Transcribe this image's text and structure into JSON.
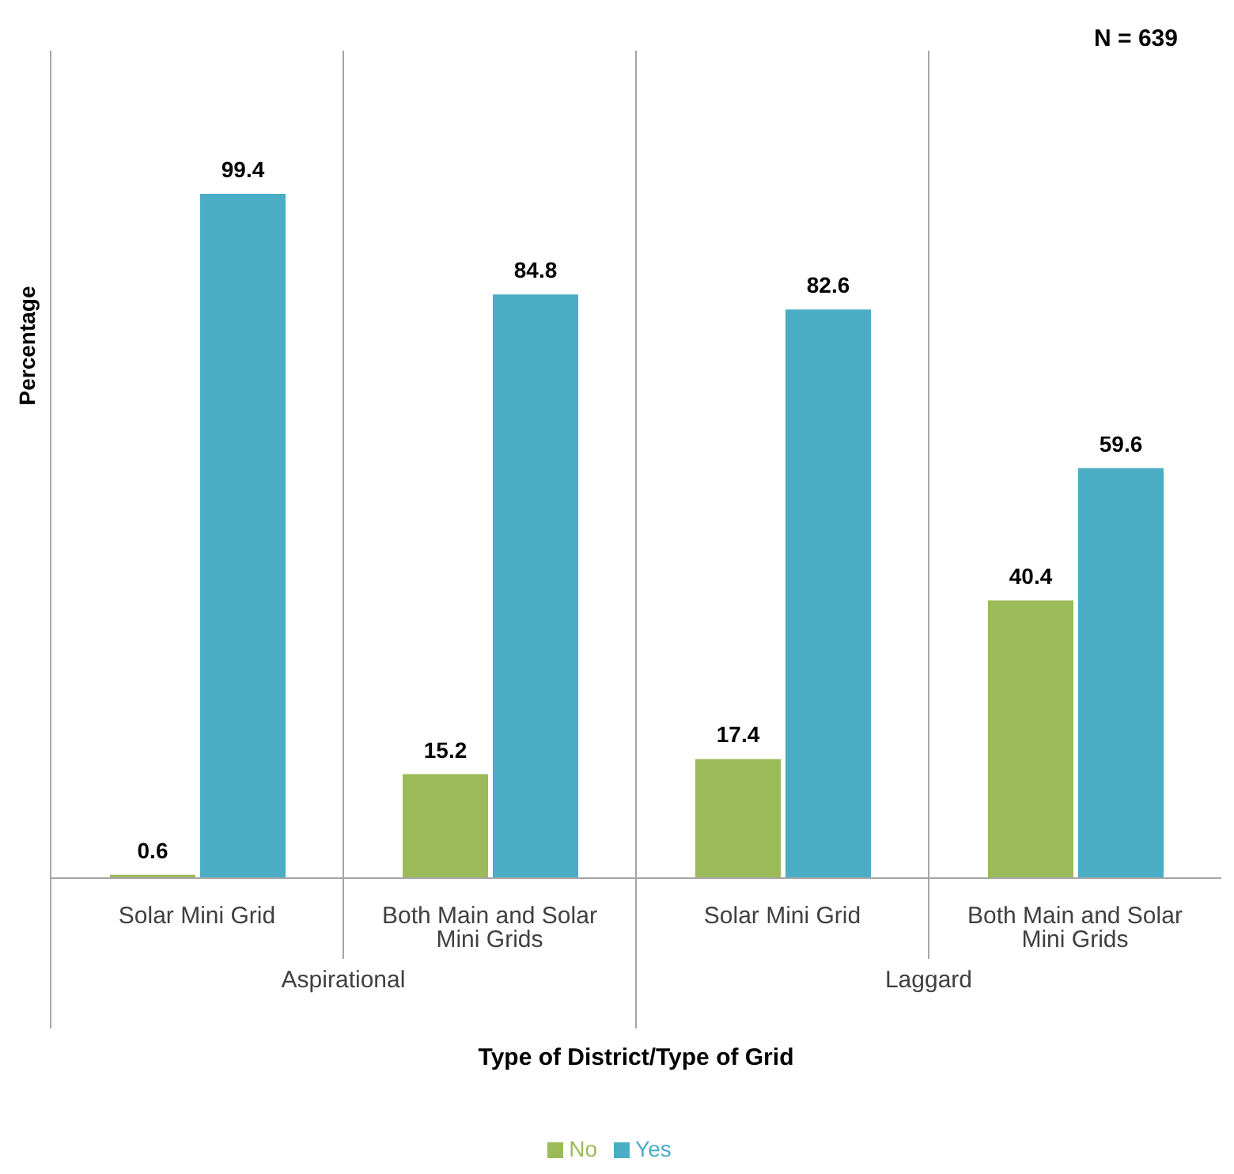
{
  "chart_data": {
    "type": "bar",
    "xlabel": "Type of District/Type of Grid",
    "ylabel": "Percentage",
    "categories": [
      "Solar Mini Grid",
      "Both Main and Solar Mini Grids",
      "Solar Mini Grid",
      "Both Main and Solar Mini Grids"
    ],
    "series": [
      {
        "name": "No",
        "color": "#9bbb59",
        "values": [
          0.6,
          15.2,
          17.4,
          40.4
        ]
      },
      {
        "name": "Yes",
        "color": "#4bacc6",
        "values": [
          99.4,
          84.8,
          82.6,
          59.6
        ]
      }
    ],
    "data_labels": true,
    "tick_labels": "x",
    "legend": "bottom",
    "annotations": [
      "N = 639",
      "Aspirational",
      "Laggard"
    ]
  }
}
